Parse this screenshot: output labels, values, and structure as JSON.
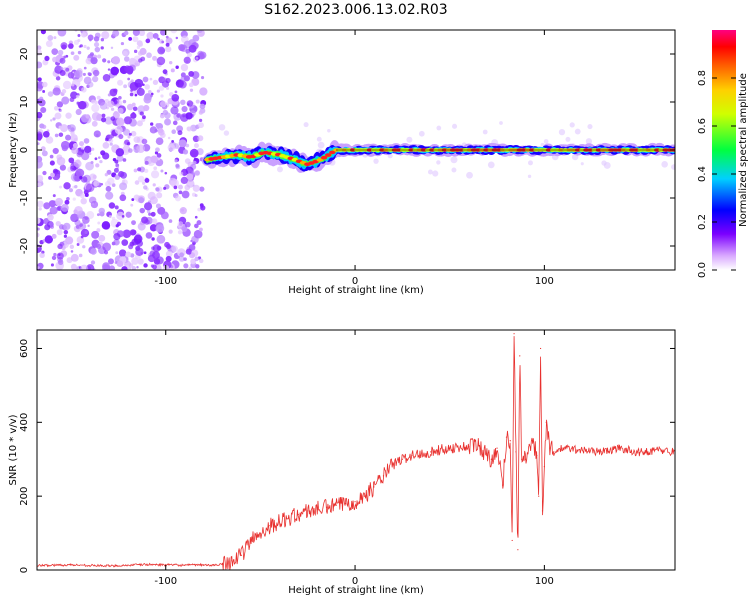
{
  "title": "S162.2023.006.13.02.R03",
  "chart_data": [
    {
      "type": "heatmap",
      "xlabel": "Height of straight line (km)",
      "ylabel": "Frequency (Hz)",
      "xlim": [
        -168,
        169
      ],
      "ylim": [
        -25,
        25
      ],
      "x_ticks": [
        "-100",
        "0",
        "100"
      ],
      "x_tick_values": [
        -100,
        0,
        100
      ],
      "y_ticks": [
        "20",
        "10",
        "0",
        "-10",
        "-20"
      ],
      "y_tick_values": [
        20,
        10,
        0,
        -10,
        -20
      ],
      "colorbar": {
        "label": "Normalized spectral amplitude",
        "range": [
          0,
          1
        ],
        "ticks": [
          "0.0",
          "0.2",
          "0.4",
          "0.6",
          "0.8"
        ],
        "tick_values": [
          0.0,
          0.2,
          0.4,
          0.6,
          0.8
        ]
      },
      "noise_region": {
        "x_from": -168,
        "x_to": -80,
        "freq_from": -25,
        "freq_to": 25
      },
      "signal_ridge": [
        {
          "x": -78,
          "freq": -2
        },
        {
          "x": -70,
          "freq": -1.5
        },
        {
          "x": -62,
          "freq": -1
        },
        {
          "x": -55,
          "freq": -1.5
        },
        {
          "x": -48,
          "freq": -0.5
        },
        {
          "x": -40,
          "freq": -1
        },
        {
          "x": -32,
          "freq": -2
        },
        {
          "x": -25,
          "freq": -3
        },
        {
          "x": -18,
          "freq": -2
        },
        {
          "x": -10,
          "freq": 0
        },
        {
          "x": 0,
          "freq": 0
        },
        {
          "x": 50,
          "freq": 0
        },
        {
          "x": 100,
          "freq": 0
        },
        {
          "x": 169,
          "freq": 0
        }
      ]
    },
    {
      "type": "line",
      "xlabel": "Height of straight line (km)",
      "ylabel": "SNR (10 * v/v)",
      "xlim": [
        -168,
        169
      ],
      "ylim": [
        0,
        650
      ],
      "x_ticks": [
        "-100",
        "0",
        "100"
      ],
      "x_tick_values": [
        -100,
        0,
        100
      ],
      "y_ticks": [
        "600",
        "400",
        "200",
        "0"
      ],
      "y_tick_values": [
        600,
        400,
        200,
        0
      ],
      "color": "#e8302e",
      "x": [
        -168,
        -150,
        -130,
        -110,
        -90,
        -80,
        -75,
        -70,
        -65,
        -60,
        -55,
        -50,
        -45,
        -40,
        -35,
        -30,
        -25,
        -20,
        -15,
        -10,
        -5,
        0,
        5,
        10,
        15,
        20,
        25,
        30,
        40,
        50,
        60,
        65,
        70,
        72,
        75,
        78,
        80,
        82,
        83,
        84,
        85,
        86,
        87,
        88,
        90,
        92,
        95,
        96,
        97,
        98,
        99,
        100,
        101,
        103,
        105,
        110,
        120,
        130,
        140,
        150,
        160,
        169
      ],
      "y": [
        12,
        14,
        11,
        15,
        13,
        14,
        12,
        18,
        25,
        40,
        80,
        100,
        120,
        130,
        140,
        150,
        160,
        165,
        170,
        175,
        180,
        185,
        200,
        225,
        255,
        285,
        300,
        310,
        320,
        330,
        335,
        338,
        310,
        300,
        330,
        230,
        360,
        350,
        80,
        640,
        320,
        55,
        580,
        300,
        300,
        340,
        330,
        310,
        200,
        600,
        160,
        280,
        400,
        330,
        320,
        330,
        325,
        320,
        330,
        318,
        325,
        320
      ]
    }
  ]
}
